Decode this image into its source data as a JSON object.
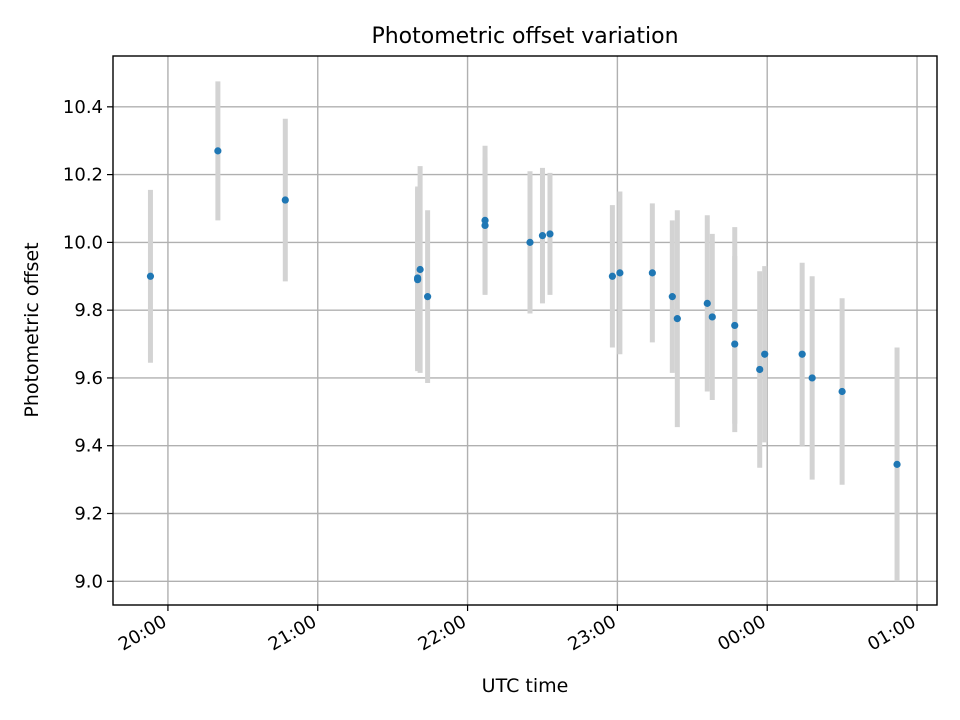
{
  "chart_data": {
    "type": "scatter",
    "title": "Photometric offset variation",
    "xlabel": "UTC time",
    "ylabel": "Photometric offset",
    "x_axis_kind": "time",
    "xlim": [
      "19:38",
      "01:08"
    ],
    "ylim": [
      8.93,
      10.55
    ],
    "x_ticks": [
      "20:00",
      "21:00",
      "22:00",
      "23:00",
      "00:00",
      "01:00"
    ],
    "y_ticks": [
      9.0,
      9.2,
      9.4,
      9.6,
      9.8,
      10.0,
      10.2,
      10.4
    ],
    "y_tick_labels": [
      "9.0",
      "9.2",
      "9.4",
      "9.6",
      "9.8",
      "10.0",
      "10.2",
      "10.4"
    ],
    "grid": true,
    "marker_color": "#1f77b4",
    "errorbar_color": "#d3d3d3",
    "points": [
      {
        "x": "19:53",
        "y": 9.9,
        "err": 0.255
      },
      {
        "x": "20:20",
        "y": 10.27,
        "err": 0.205
      },
      {
        "x": "20:47",
        "y": 10.125,
        "err": 0.24
      },
      {
        "x": "21:40",
        "y": 9.895,
        "err": 0.27
      },
      {
        "x": "21:40",
        "y": 9.89,
        "err": 0.27
      },
      {
        "x": "21:41",
        "y": 9.92,
        "err": 0.305
      },
      {
        "x": "21:44",
        "y": 9.84,
        "err": 0.255
      },
      {
        "x": "22:07",
        "y": 10.05,
        "err": 0.2
      },
      {
        "x": "22:07",
        "y": 10.065,
        "err": 0.22
      },
      {
        "x": "22:25",
        "y": 10.0,
        "err": 0.21
      },
      {
        "x": "22:30",
        "y": 10.02,
        "err": 0.2
      },
      {
        "x": "22:33",
        "y": 10.025,
        "err": 0.18
      },
      {
        "x": "22:58",
        "y": 9.9,
        "err": 0.21
      },
      {
        "x": "23:01",
        "y": 9.91,
        "err": 0.24
      },
      {
        "x": "23:14",
        "y": 9.91,
        "err": 0.205
      },
      {
        "x": "23:22",
        "y": 9.84,
        "err": 0.225
      },
      {
        "x": "23:24",
        "y": 9.775,
        "err": 0.32
      },
      {
        "x": "23:36",
        "y": 9.82,
        "err": 0.26
      },
      {
        "x": "23:38",
        "y": 9.78,
        "err": 0.245
      },
      {
        "x": "23:47",
        "y": 9.755,
        "err": 0.29
      },
      {
        "x": "23:47",
        "y": 9.7,
        "err": 0.26
      },
      {
        "x": "23:57",
        "y": 9.625,
        "err": 0.29
      },
      {
        "x": "23:59",
        "y": 9.67,
        "err": 0.26
      },
      {
        "x": "00:14",
        "y": 9.67,
        "err": 0.27
      },
      {
        "x": "00:18",
        "y": 9.6,
        "err": 0.3
      },
      {
        "x": "00:30",
        "y": 9.56,
        "err": 0.275
      },
      {
        "x": "00:52",
        "y": 9.345,
        "err": 0.345
      }
    ]
  }
}
